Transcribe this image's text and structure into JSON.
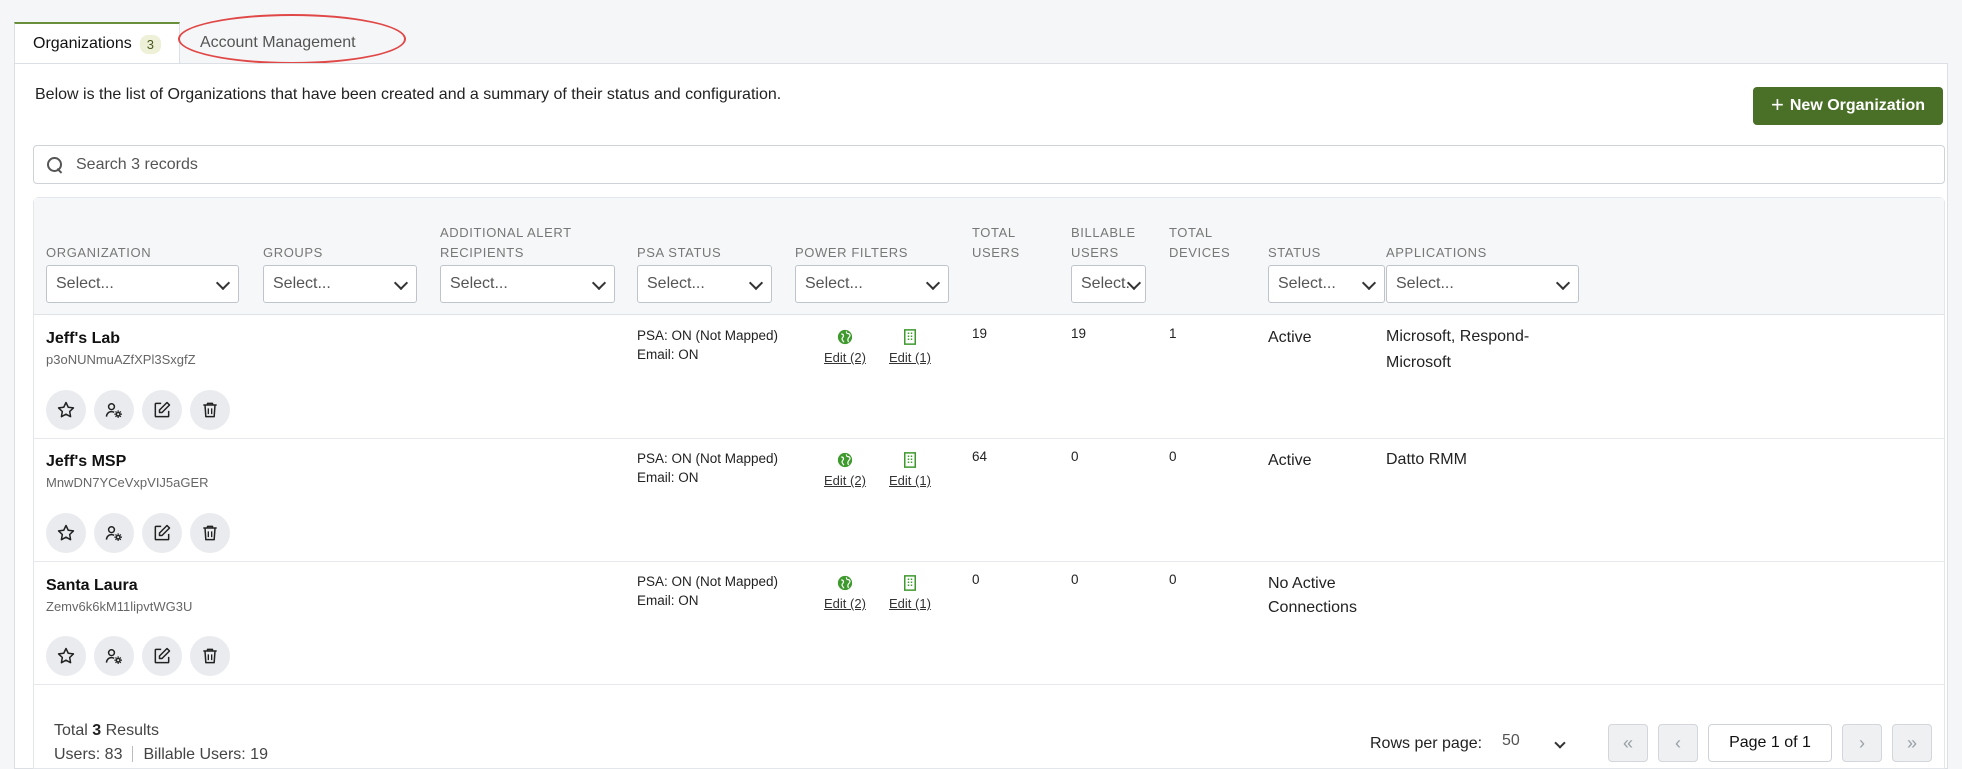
{
  "tabs": [
    {
      "label": "Organizations",
      "count": "3"
    },
    {
      "label": "Account Management"
    }
  ],
  "description": "Below is the list of Organizations that have been created and a summary of their status and configuration.",
  "new_button": {
    "label": "New Organization",
    "icon": "plus-icon"
  },
  "search": {
    "placeholder": "Search 3 records",
    "value": ""
  },
  "columns": [
    {
      "label": "ORGANIZATION",
      "filter": "Select..."
    },
    {
      "label": "GROUPS",
      "filter": "Select..."
    },
    {
      "label": "ADDITIONAL ALERT RECIPIENTS",
      "filter": "Select..."
    },
    {
      "label": "PSA STATUS",
      "filter": "Select..."
    },
    {
      "label": "POWER FILTERS",
      "filter": "Select..."
    },
    {
      "label": "TOTAL USERS"
    },
    {
      "label": "BILLABLE USERS",
      "filter": "Select."
    },
    {
      "label": "TOTAL DEVICES"
    },
    {
      "label": "STATUS",
      "filter": "Select..."
    },
    {
      "label": "APPLICATIONS",
      "filter": "Select..."
    }
  ],
  "rows": [
    {
      "name": "Jeff's Lab",
      "id": "p3oNUNmuAZfXPl3SxgfZ",
      "psa": "PSA: ON (Not Mapped)",
      "email": "Email: ON",
      "pf_globe": "Edit (2)",
      "pf_building": "Edit (1)",
      "total_users": "19",
      "billable_users": "19",
      "total_devices": "1",
      "status": "Active",
      "applications": "Microsoft, Respond-Microsoft"
    },
    {
      "name": "Jeff's MSP",
      "id": "MnwDN7YCeVxpVIJ5aGER",
      "psa": "PSA: ON (Not Mapped)",
      "email": "Email: ON",
      "pf_globe": "Edit (2)",
      "pf_building": "Edit (1)",
      "total_users": "64",
      "billable_users": "0",
      "total_devices": "0",
      "status": "Active",
      "applications": "Datto RMM"
    },
    {
      "name": "Santa Laura",
      "id": "Zemv6k6kM11lipvtWG3U",
      "psa": "PSA: ON (Not Mapped)",
      "email": "Email: ON",
      "pf_globe": "Edit (2)",
      "pf_building": "Edit (1)",
      "total_users": "0",
      "billable_users": "0",
      "total_devices": "0",
      "status": "No Active Connections",
      "applications": ""
    }
  ],
  "footer": {
    "total_prefix": "Total",
    "total_count": "3",
    "total_suffix": "Results",
    "users": "Users: 83",
    "billable": "Billable Users: 19",
    "rows_per_page_label": "Rows per page:",
    "rows_per_page": "50",
    "page": "Page 1 of 1"
  },
  "colors": {
    "accent": "#4a7028",
    "tab_active_border": "#6a8f3c",
    "icon_green": "#3f9a2e",
    "highlight_ring": "#e04848"
  }
}
